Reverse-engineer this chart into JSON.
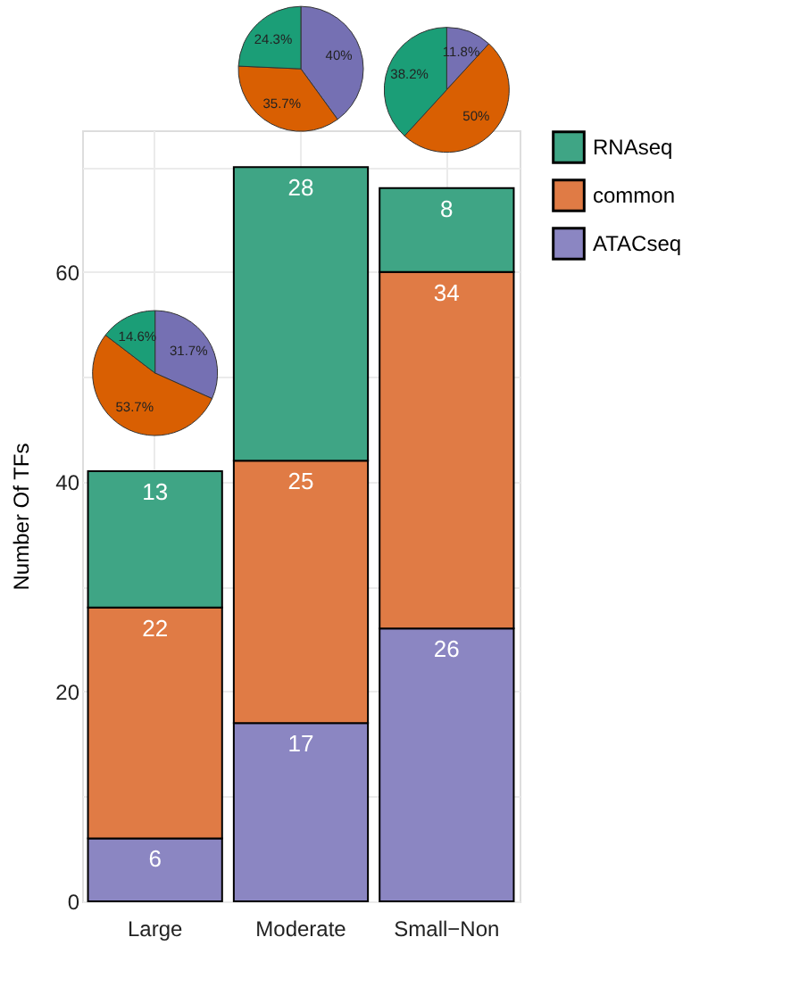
{
  "chart_data": [
    {
      "type": "bar",
      "stacked": true,
      "ylabel": "Number Of TFs",
      "categories": [
        "Large",
        "Moderate",
        "Small−Non"
      ],
      "series": [
        {
          "name": "ATACseq",
          "color": "#8b86c2",
          "values": [
            6,
            17,
            26
          ]
        },
        {
          "name": "common",
          "color": "#e07b45",
          "values": [
            22,
            25,
            34
          ]
        },
        {
          "name": "RNAseq",
          "color": "#3fa585",
          "values": [
            13,
            28,
            8
          ]
        }
      ],
      "data_labels": true,
      "ylim": [
        0,
        73.5
      ],
      "yticks": [
        0,
        {
          "value": 10,
          "label": null
        },
        20,
        {
          "value": 30,
          "label": null
        },
        40,
        {
          "value": 50,
          "label": null
        },
        60,
        {
          "value": 70,
          "label": null
        }
      ],
      "grid": true,
      "legend": "right"
    },
    {
      "type": "pie",
      "categories": [
        null,
        null,
        null
      ],
      "values": [
        31.7,
        53.7,
        14.6
      ],
      "colors": [
        "#7570b3",
        "#d95f02",
        "#1b9e77"
      ],
      "value_labels": [
        "31.7%",
        "53.7%",
        "14.6%"
      ]
    },
    {
      "type": "pie",
      "categories": [
        null,
        null,
        null
      ],
      "values": [
        40,
        35.7,
        24.3
      ],
      "colors": [
        "#7570b3",
        "#d95f02",
        "#1b9e77"
      ],
      "value_labels": [
        "40%",
        "35.7%",
        "24.3%"
      ]
    },
    {
      "type": "pie",
      "categories": [
        null,
        null,
        null
      ],
      "values": [
        11.8,
        50,
        38.2
      ],
      "colors": [
        "#7570b3",
        "#d95f02",
        "#1b9e77"
      ],
      "value_labels": [
        "11.8%",
        "50%",
        "38.2%"
      ]
    }
  ]
}
